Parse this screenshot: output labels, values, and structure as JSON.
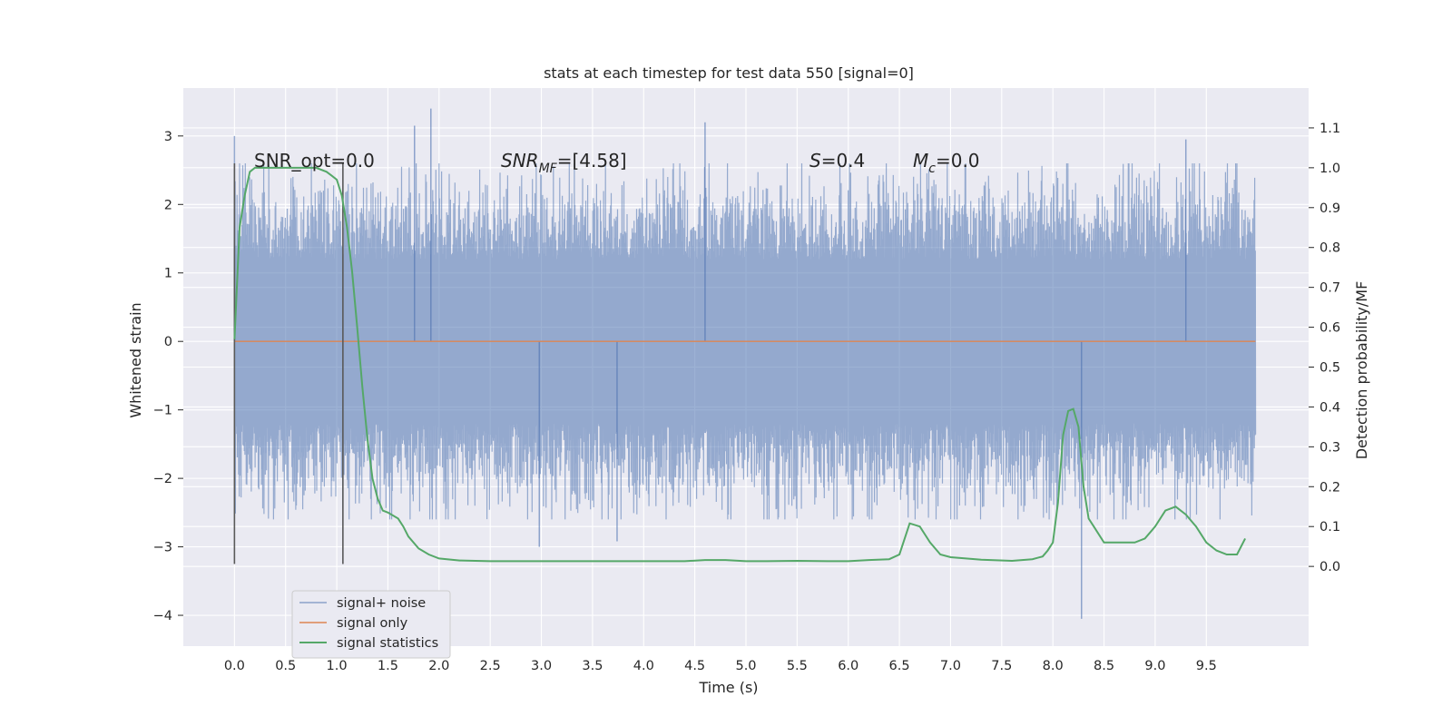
{
  "chart_data": {
    "type": "line",
    "title": "stats at each timestep for test data 550 [signal=0]",
    "xlabel": "Time (s)",
    "ylabel": "Whitened strain",
    "y2label": "Detection probability/MF",
    "xlim": [
      -0.5,
      10.5
    ],
    "ylim": [
      -4.45,
      3.7
    ],
    "y2lim": [
      -0.2,
      1.2
    ],
    "xticks": [
      "0.0",
      "0.5",
      "1.0",
      "1.5",
      "2.0",
      "2.5",
      "3.0",
      "3.5",
      "4.0",
      "4.5",
      "5.0",
      "5.5",
      "6.0",
      "6.5",
      "7.0",
      "7.5",
      "8.0",
      "8.5",
      "9.0",
      "9.5"
    ],
    "yticks": [
      "3",
      "2",
      "1",
      "0",
      "−1",
      "−2",
      "−3",
      "−4"
    ],
    "y2ticks": [
      "1.1",
      "1.0",
      "0.9",
      "0.8",
      "0.7",
      "0.6",
      "0.5",
      "0.4",
      "0.3",
      "0.2",
      "0.1",
      "0.0"
    ],
    "grid": true,
    "legend_position": "lower-left",
    "colors": {
      "noise": "#4c72b0",
      "signal": "#dd8452",
      "stats": "#55a868",
      "marker": "#595959",
      "background": "#eaeaf2",
      "grid": "#ffffff"
    },
    "annotations": {
      "snr_opt": "SNR_opt=0.0",
      "snr_mf_base": "SNR",
      "snr_mf_sub": "MF",
      "snr_mf_rest": "=[4.58]",
      "s_sym": "S",
      "s_val": "=0.4",
      "mc_base": "M",
      "mc_sub": "c",
      "mc_rest": "=0.0"
    },
    "series": [
      {
        "name": "signal+ noise",
        "axis": "left",
        "description_points": "dense noise, amplitude roughly ±2.6 with outliers",
        "x_range": [
          0.0,
          9.98
        ],
        "envelope_peaks": [
          {
            "x": 0.0,
            "y": 3.0
          },
          {
            "x": 1.76,
            "y": 3.15
          },
          {
            "x": 1.92,
            "y": 3.4
          },
          {
            "x": 4.6,
            "y": 3.2
          },
          {
            "x": 8.28,
            "y": -4.05
          },
          {
            "x": 9.3,
            "y": 2.95
          },
          {
            "x": 2.98,
            "y": -3.0
          },
          {
            "x": 3.74,
            "y": -2.92
          }
        ]
      },
      {
        "name": "signal only",
        "axis": "left",
        "x": [
          0.0,
          9.98
        ],
        "y": [
          0.0,
          0.0
        ]
      },
      {
        "name": "signal statistics",
        "axis": "right",
        "x": [
          0.0,
          0.05,
          0.1,
          0.15,
          0.2,
          0.3,
          0.4,
          0.5,
          0.6,
          0.7,
          0.8,
          0.9,
          0.95,
          1.0,
          1.05,
          1.1,
          1.15,
          1.2,
          1.25,
          1.3,
          1.35,
          1.4,
          1.45,
          1.5,
          1.6,
          1.65,
          1.7,
          1.8,
          1.9,
          2.0,
          2.2,
          2.5,
          2.8,
          3.0,
          3.5,
          3.9,
          4.2,
          4.4,
          4.6,
          4.8,
          5.0,
          5.2,
          5.5,
          5.8,
          6.0,
          6.2,
          6.4,
          6.5,
          6.6,
          6.7,
          6.8,
          6.9,
          7.0,
          7.3,
          7.6,
          7.8,
          7.9,
          7.95,
          8.0,
          8.05,
          8.1,
          8.15,
          8.2,
          8.25,
          8.3,
          8.35,
          8.4,
          8.5,
          8.6,
          8.8,
          8.9,
          9.0,
          9.1,
          9.2,
          9.3,
          9.4,
          9.5,
          9.6,
          9.7,
          9.8,
          9.88
        ],
        "y": [
          0.57,
          0.85,
          0.93,
          0.99,
          1.0,
          1.0,
          1.0,
          1.0,
          1.0,
          1.0,
          1.0,
          0.99,
          0.98,
          0.97,
          0.93,
          0.85,
          0.74,
          0.6,
          0.45,
          0.32,
          0.22,
          0.17,
          0.14,
          0.135,
          0.12,
          0.1,
          0.075,
          0.045,
          0.03,
          0.02,
          0.015,
          0.013,
          0.013,
          0.013,
          0.013,
          0.013,
          0.013,
          0.013,
          0.016,
          0.016,
          0.013,
          0.013,
          0.014,
          0.013,
          0.013,
          0.016,
          0.018,
          0.03,
          0.108,
          0.1,
          0.06,
          0.03,
          0.023,
          0.017,
          0.014,
          0.018,
          0.025,
          0.04,
          0.06,
          0.16,
          0.33,
          0.39,
          0.395,
          0.35,
          0.2,
          0.12,
          0.1,
          0.06,
          0.06,
          0.06,
          0.07,
          0.1,
          0.14,
          0.15,
          0.13,
          0.1,
          0.06,
          0.04,
          0.03,
          0.03,
          0.07
        ]
      }
    ],
    "vertical_markers": [
      {
        "x": 0.0,
        "y": [
          -3.25,
          2.6
        ]
      },
      {
        "x": 1.06,
        "y": [
          -3.25,
          2.6
        ]
      }
    ]
  }
}
